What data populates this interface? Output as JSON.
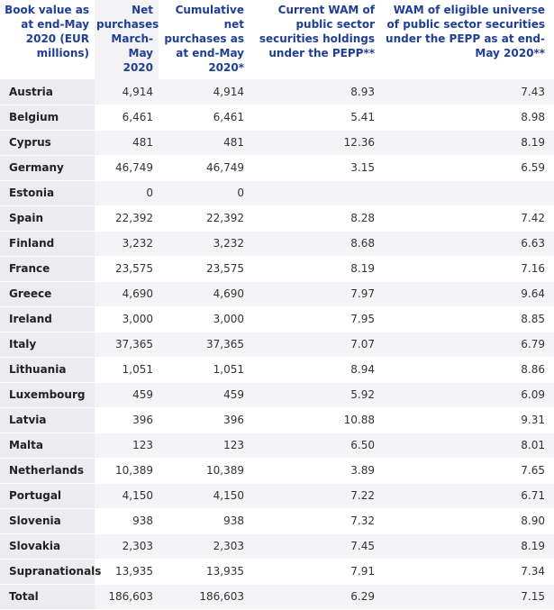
{
  "headers": [
    "Book value as at end-May 2020 (EUR millions)",
    "Net purchases March-May 2020",
    "Cumulative net purchases as at end-May 2020*",
    "Current WAM of public sector securities holdings under the PEPP**",
    "WAM of eligible universe of public sector securities under the PEPP as at end-May 2020**"
  ],
  "rows": [
    {
      "name": "Austria",
      "net": "4,914",
      "cum": "4,914",
      "wam": "8.93",
      "eligible": "7.43"
    },
    {
      "name": "Belgium",
      "net": "6,461",
      "cum": "6,461",
      "wam": "5.41",
      "eligible": "8.98"
    },
    {
      "name": "Cyprus",
      "net": "481",
      "cum": "481",
      "wam": "12.36",
      "eligible": "8.19"
    },
    {
      "name": "Germany",
      "net": "46,749",
      "cum": "46,749",
      "wam": "3.15",
      "eligible": "6.59"
    },
    {
      "name": "Estonia",
      "net": "0",
      "cum": "0",
      "wam": "",
      "eligible": ""
    },
    {
      "name": "Spain",
      "net": "22,392",
      "cum": "22,392",
      "wam": "8.28",
      "eligible": "7.42"
    },
    {
      "name": "Finland",
      "net": "3,232",
      "cum": "3,232",
      "wam": "8.68",
      "eligible": "6.63"
    },
    {
      "name": "France",
      "net": "23,575",
      "cum": "23,575",
      "wam": "8.19",
      "eligible": "7.16"
    },
    {
      "name": "Greece",
      "net": "4,690",
      "cum": "4,690",
      "wam": "7.97",
      "eligible": "9.64"
    },
    {
      "name": "Ireland",
      "net": "3,000",
      "cum": "3,000",
      "wam": "7.95",
      "eligible": "8.85"
    },
    {
      "name": "Italy",
      "net": "37,365",
      "cum": "37,365",
      "wam": "7.07",
      "eligible": "6.79"
    },
    {
      "name": "Lithuania",
      "net": "1,051",
      "cum": "1,051",
      "wam": "8.94",
      "eligible": "8.86"
    },
    {
      "name": "Luxembourg",
      "net": "459",
      "cum": "459",
      "wam": "5.92",
      "eligible": "6.09"
    },
    {
      "name": "Latvia",
      "net": "396",
      "cum": "396",
      "wam": "10.88",
      "eligible": "9.31"
    },
    {
      "name": "Malta",
      "net": "123",
      "cum": "123",
      "wam": "6.50",
      "eligible": "8.01"
    },
    {
      "name": "Netherlands",
      "net": "10,389",
      "cum": "10,389",
      "wam": "3.89",
      "eligible": "7.65"
    },
    {
      "name": "Portugal",
      "net": "4,150",
      "cum": "4,150",
      "wam": "7.22",
      "eligible": "6.71"
    },
    {
      "name": "Slovenia",
      "net": "938",
      "cum": "938",
      "wam": "7.32",
      "eligible": "8.90"
    },
    {
      "name": "Slovakia",
      "net": "2,303",
      "cum": "2,303",
      "wam": "7.45",
      "eligible": "8.19"
    },
    {
      "name": "Supranationals",
      "net": "13,935",
      "cum": "13,935",
      "wam": "7.91",
      "eligible": "7.34"
    },
    {
      "name": "Total",
      "net": "186,603",
      "cum": "186,603",
      "wam": "6.29",
      "eligible": "7.15"
    }
  ]
}
